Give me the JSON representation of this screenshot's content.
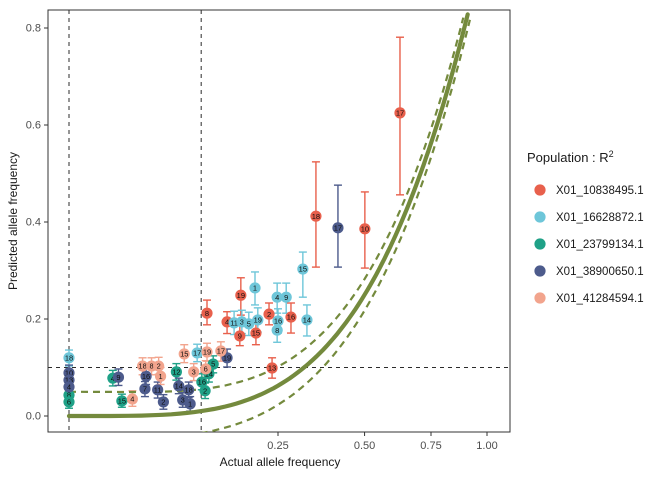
{
  "chart_data": {
    "type": "scatter",
    "xlabel": "Actual allele frequency",
    "ylabel": "Predicted allele frequency",
    "x_scale": "sqrt",
    "x_ticks": [
      0.25,
      0.5,
      0.75,
      1.0
    ],
    "x_tick_labels": [
      "0.25",
      "0.50",
      "0.75",
      "1.00"
    ],
    "y_ticks": [
      0.0,
      0.2,
      0.4,
      0.6,
      0.8
    ],
    "y_tick_labels": [
      "0.0",
      "0.2",
      "0.4",
      "0.6",
      "0.8"
    ],
    "xlim": [
      0,
      1.1
    ],
    "ylim": [
      -0.03,
      0.84
    ],
    "grid": false,
    "reference_lines": {
      "vertical": [
        0,
        0.1
      ],
      "horizontal": [
        0.1
      ],
      "color": "#2b2b2b",
      "style": "dashed"
    },
    "fit_curve": {
      "formula": "y = x^2",
      "color": "#748A3D",
      "band": "dashed confidence band"
    },
    "series": [
      {
        "name": "X01_10838495.1",
        "color": "#E8604C",
        "points": [
          {
            "n": "8",
            "x": 0.109,
            "y": 0.212,
            "lo": 0.188,
            "hi": 0.239
          },
          {
            "n": "19",
            "x": 0.169,
            "y": 0.249,
            "lo": 0.208,
            "hi": 0.285
          },
          {
            "n": "2",
            "x": 0.229,
            "y": 0.21,
            "lo": 0.188,
            "hi": 0.233
          },
          {
            "n": "4",
            "x": 0.143,
            "y": 0.194,
            "lo": 0.17,
            "hi": 0.215
          },
          {
            "n": "9",
            "x": 0.167,
            "y": 0.165,
            "lo": 0.145,
            "hi": 0.186
          },
          {
            "n": "15",
            "x": 0.2,
            "y": 0.171,
            "lo": 0.147,
            "hi": 0.194
          },
          {
            "n": "16",
            "x": 0.282,
            "y": 0.204,
            "lo": 0.171,
            "hi": 0.233
          },
          {
            "n": "13",
            "x": 0.236,
            "y": 0.099,
            "lo": 0.078,
            "hi": 0.12
          },
          {
            "n": "18",
            "x": 0.349,
            "y": 0.412,
            "lo": 0.307,
            "hi": 0.524
          },
          {
            "n": "10",
            "x": 0.501,
            "y": 0.386,
            "lo": 0.305,
            "hi": 0.462
          },
          {
            "n": "17",
            "x": 0.627,
            "y": 0.625,
            "lo": 0.456,
            "hi": 0.781
          }
        ]
      },
      {
        "name": "X01_16628872.1",
        "color": "#6EC6D9",
        "points": [
          {
            "n": "18",
            "x": 0.0,
            "y": 0.12,
            "lo": 0.103,
            "hi": 0.136
          },
          {
            "n": "17",
            "x": 0.094,
            "y": 0.13,
            "lo": 0.112,
            "hi": 0.148
          },
          {
            "n": "11",
            "x": 0.156,
            "y": 0.192,
            "lo": 0.168,
            "hi": 0.216
          },
          {
            "n": "3",
            "x": 0.171,
            "y": 0.194,
            "lo": 0.17,
            "hi": 0.218
          },
          {
            "n": "5",
            "x": 0.185,
            "y": 0.19,
            "lo": 0.166,
            "hi": 0.214
          },
          {
            "n": "19",
            "x": 0.204,
            "y": 0.198,
            "lo": 0.173,
            "hi": 0.223
          },
          {
            "n": "1",
            "x": 0.198,
            "y": 0.264,
            "lo": 0.229,
            "hi": 0.297
          },
          {
            "n": "16",
            "x": 0.25,
            "y": 0.196,
            "lo": 0.171,
            "hi": 0.221
          },
          {
            "n": "8",
            "x": 0.248,
            "y": 0.177,
            "lo": 0.152,
            "hi": 0.202
          },
          {
            "n": "4",
            "x": 0.248,
            "y": 0.245,
            "lo": 0.212,
            "hi": 0.274
          },
          {
            "n": "9",
            "x": 0.27,
            "y": 0.245,
            "lo": 0.212,
            "hi": 0.274
          },
          {
            "n": "14",
            "x": 0.324,
            "y": 0.198,
            "lo": 0.165,
            "hi": 0.229
          },
          {
            "n": "15",
            "x": 0.313,
            "y": 0.303,
            "lo": 0.245,
            "hi": 0.338
          }
        ]
      },
      {
        "name": "X01_23799134.1",
        "color": "#1FA187",
        "points": [
          {
            "n": "8",
            "x": 0.0,
            "y": 0.043,
            "lo": 0.03,
            "hi": 0.057
          },
          {
            "n": "6",
            "x": 0.0,
            "y": 0.029,
            "lo": 0.016,
            "hi": 0.042
          },
          {
            "n": "4",
            "x": 0.011,
            "y": 0.078,
            "lo": 0.062,
            "hi": 0.094
          },
          {
            "n": "15",
            "x": 0.016,
            "y": 0.031,
            "lo": 0.018,
            "hi": 0.045
          },
          {
            "n": "12",
            "x": 0.066,
            "y": 0.091,
            "lo": 0.074,
            "hi": 0.108
          },
          {
            "n": "16",
            "x": 0.101,
            "y": 0.07,
            "lo": 0.054,
            "hi": 0.087
          },
          {
            "n": "2",
            "x": 0.106,
            "y": 0.052,
            "lo": 0.036,
            "hi": 0.068
          },
          {
            "n": "14",
            "x": 0.112,
            "y": 0.087,
            "lo": 0.07,
            "hi": 0.104
          },
          {
            "n": "5",
            "x": 0.119,
            "y": 0.107,
            "lo": 0.089,
            "hi": 0.124
          }
        ]
      },
      {
        "name": "X01_38900650.1",
        "color": "#4D5B8C",
        "points": [
          {
            "n": "10",
            "x": 0.0,
            "y": 0.089,
            "lo": 0.072,
            "hi": 0.105
          },
          {
            "n": "13",
            "x": 0.0,
            "y": 0.074,
            "lo": 0.058,
            "hi": 0.09
          },
          {
            "n": "4",
            "x": 0.0,
            "y": 0.06,
            "lo": 0.044,
            "hi": 0.076
          },
          {
            "n": "9",
            "x": 0.014,
            "y": 0.08,
            "lo": 0.063,
            "hi": 0.097
          },
          {
            "n": "16",
            "x": 0.034,
            "y": 0.082,
            "lo": 0.065,
            "hi": 0.099
          },
          {
            "n": "7",
            "x": 0.033,
            "y": 0.056,
            "lo": 0.04,
            "hi": 0.071
          },
          {
            "n": "11",
            "x": 0.045,
            "y": 0.054,
            "lo": 0.037,
            "hi": 0.07
          },
          {
            "n": "2",
            "x": 0.051,
            "y": 0.029,
            "lo": 0.014,
            "hi": 0.044
          },
          {
            "n": "14",
            "x": 0.069,
            "y": 0.062,
            "lo": 0.046,
            "hi": 0.078
          },
          {
            "n": "18",
            "x": 0.082,
            "y": 0.054,
            "lo": 0.038,
            "hi": 0.07
          },
          {
            "n": "3",
            "x": 0.074,
            "y": 0.033,
            "lo": 0.018,
            "hi": 0.048
          },
          {
            "n": "1",
            "x": 0.084,
            "y": 0.025,
            "lo": 0.01,
            "hi": 0.04
          },
          {
            "n": "19",
            "x": 0.143,
            "y": 0.12,
            "lo": 0.101,
            "hi": 0.138
          },
          {
            "n": "17",
            "x": 0.414,
            "y": 0.388,
            "lo": 0.307,
            "hi": 0.476
          }
        ]
      },
      {
        "name": "X01_41284594.1",
        "color": "#F2A48D",
        "points": [
          {
            "n": "4",
            "x": 0.023,
            "y": 0.035,
            "lo": 0.02,
            "hi": 0.052
          },
          {
            "n": "18",
            "x": 0.031,
            "y": 0.103,
            "lo": 0.085,
            "hi": 0.12
          },
          {
            "n": "8",
            "x": 0.039,
            "y": 0.103,
            "lo": 0.085,
            "hi": 0.12
          },
          {
            "n": "2",
            "x": 0.046,
            "y": 0.103,
            "lo": 0.086,
            "hi": 0.121
          },
          {
            "n": "1",
            "x": 0.048,
            "y": 0.082,
            "lo": 0.065,
            "hi": 0.1
          },
          {
            "n": "15",
            "x": 0.076,
            "y": 0.128,
            "lo": 0.11,
            "hi": 0.147
          },
          {
            "n": "3",
            "x": 0.089,
            "y": 0.091,
            "lo": 0.073,
            "hi": 0.108
          },
          {
            "n": "6",
            "x": 0.107,
            "y": 0.097,
            "lo": 0.08,
            "hi": 0.114
          },
          {
            "n": "19",
            "x": 0.109,
            "y": 0.132,
            "lo": 0.113,
            "hi": 0.15
          },
          {
            "n": "17",
            "x": 0.132,
            "y": 0.134,
            "lo": 0.113,
            "hi": 0.153
          }
        ]
      }
    ]
  },
  "legend": {
    "title": "Population : R",
    "title_sup": "2",
    "items": [
      {
        "label": "X01_10838495.1",
        "color": "#E8604C"
      },
      {
        "label": "X01_16628872.1",
        "color": "#6EC6D9"
      },
      {
        "label": "X01_23799134.1",
        "color": "#1FA187"
      },
      {
        "label": "X01_38900650.1",
        "color": "#4D5B8C"
      },
      {
        "label": "X01_41284594.1",
        "color": "#F2A48D"
      }
    ]
  },
  "axes": {
    "x_label": "Actual allele frequency",
    "y_label": "Predicted allele frequency"
  },
  "colors": {
    "curve": "#748A3D",
    "guide": "#2b2b2b",
    "panel_border": "#333333",
    "tick_text": "#4d4d4d"
  }
}
